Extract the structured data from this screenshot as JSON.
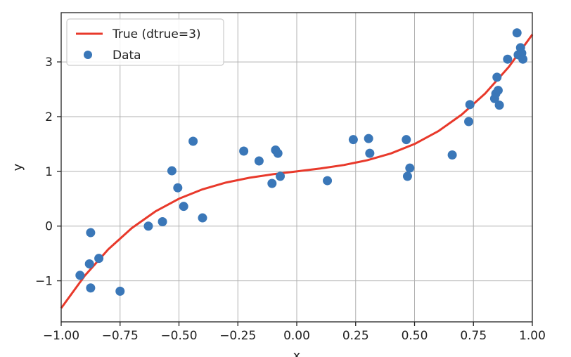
{
  "chart_data": {
    "type": "scatter",
    "xlabel": "x",
    "ylabel": "y",
    "xlim": [
      -1.0,
      1.0
    ],
    "ylim": [
      -1.75,
      3.9
    ],
    "grid": true,
    "legend_position": "top-left",
    "x_ticks": [
      -1.0,
      -0.75,
      -0.5,
      -0.25,
      0.0,
      0.25,
      0.5,
      0.75,
      1.0
    ],
    "x_tick_labels": [
      "−1.00",
      "−0.75",
      "−0.50",
      "−0.25",
      "0.00",
      "0.25",
      "0.50",
      "0.75",
      "1.00"
    ],
    "y_ticks": [
      -1,
      0,
      1,
      2,
      3
    ],
    "y_tick_labels": [
      "−1",
      "0",
      "1",
      "2",
      "3"
    ],
    "series": [
      {
        "name": "True (dtrue=3)",
        "kind": "line",
        "color": "#e8392b",
        "function": "2*x^3 + 0.5*x + 1",
        "x": [
          -1.0,
          -0.9,
          -0.8,
          -0.7,
          -0.6,
          -0.5,
          -0.4,
          -0.3,
          -0.2,
          -0.1,
          0.0,
          0.1,
          0.2,
          0.3,
          0.4,
          0.5,
          0.6,
          0.7,
          0.8,
          0.9,
          1.0
        ],
        "y": [
          -1.5,
          -0.908,
          -0.424,
          -0.036,
          0.268,
          0.5,
          0.672,
          0.796,
          0.884,
          0.948,
          1.0,
          1.052,
          1.116,
          1.204,
          1.328,
          1.5,
          1.732,
          2.036,
          2.424,
          2.908,
          3.5
        ]
      },
      {
        "name": "Data",
        "kind": "scatter",
        "color": "#3a77b8",
        "points": [
          {
            "x": -0.92,
            "y": -0.9
          },
          {
            "x": -0.88,
            "y": -0.69
          },
          {
            "x": -0.875,
            "y": -0.12
          },
          {
            "x": -0.875,
            "y": -1.13
          },
          {
            "x": -0.84,
            "y": -0.59
          },
          {
            "x": -0.75,
            "y": -1.19
          },
          {
            "x": -0.63,
            "y": 0.0
          },
          {
            "x": -0.57,
            "y": 0.08
          },
          {
            "x": -0.53,
            "y": 1.01
          },
          {
            "x": -0.505,
            "y": 0.7
          },
          {
            "x": -0.48,
            "y": 0.36
          },
          {
            "x": -0.44,
            "y": 1.55
          },
          {
            "x": -0.4,
            "y": 0.15
          },
          {
            "x": -0.225,
            "y": 1.37
          },
          {
            "x": -0.16,
            "y": 1.19
          },
          {
            "x": -0.105,
            "y": 0.78
          },
          {
            "x": -0.09,
            "y": 1.39
          },
          {
            "x": -0.08,
            "y": 1.33
          },
          {
            "x": -0.07,
            "y": 0.91
          },
          {
            "x": 0.13,
            "y": 0.83
          },
          {
            "x": 0.24,
            "y": 1.58
          },
          {
            "x": 0.305,
            "y": 1.6
          },
          {
            "x": 0.31,
            "y": 1.33
          },
          {
            "x": 0.465,
            "y": 1.58
          },
          {
            "x": 0.47,
            "y": 0.91
          },
          {
            "x": 0.48,
            "y": 1.06
          },
          {
            "x": 0.66,
            "y": 1.3
          },
          {
            "x": 0.73,
            "y": 1.91
          },
          {
            "x": 0.735,
            "y": 2.22
          },
          {
            "x": 0.84,
            "y": 2.33
          },
          {
            "x": 0.845,
            "y": 2.42
          },
          {
            "x": 0.85,
            "y": 2.72
          },
          {
            "x": 0.855,
            "y": 2.48
          },
          {
            "x": 0.86,
            "y": 2.21
          },
          {
            "x": 0.895,
            "y": 3.05
          },
          {
            "x": 0.935,
            "y": 3.53
          },
          {
            "x": 0.94,
            "y": 3.13
          },
          {
            "x": 0.95,
            "y": 3.26
          },
          {
            "x": 0.955,
            "y": 3.16
          },
          {
            "x": 0.96,
            "y": 3.05
          }
        ]
      }
    ]
  }
}
